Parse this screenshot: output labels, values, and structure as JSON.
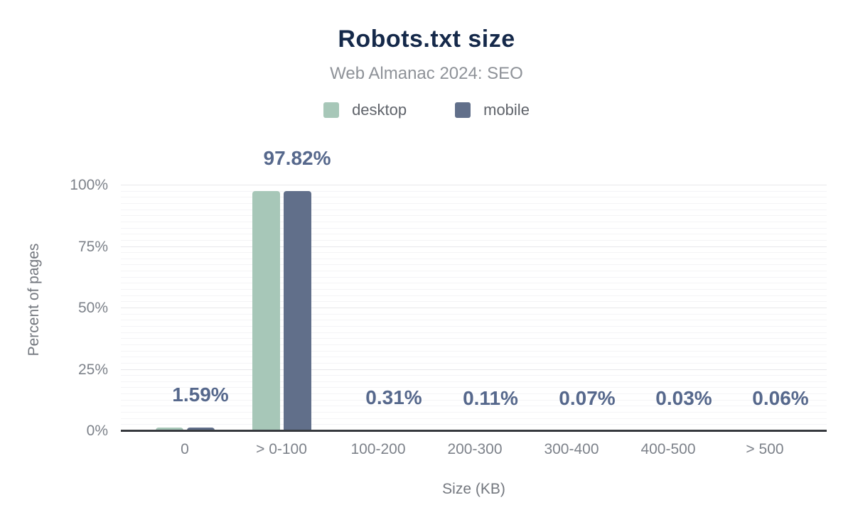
{
  "figure": {
    "title": "Robots.txt size",
    "subtitle": "Web Almanac 2024: SEO"
  },
  "legend": [
    {
      "label": "desktop",
      "color": "#a7c7b8"
    },
    {
      "label": "mobile",
      "color": "#616f8a"
    }
  ],
  "chart_data": {
    "type": "bar",
    "title": "Robots.txt size",
    "subtitle": "Web Almanac 2024: SEO",
    "categories": [
      "0",
      "> 0-100",
      "100-200",
      "200-300",
      "300-400",
      "400-500",
      "> 500"
    ],
    "series": [
      {
        "name": "desktop",
        "color": "#a7c7b8",
        "values": [
          1.59,
          97.82,
          0.31,
          0.11,
          0.07,
          0.03,
          0.06
        ]
      },
      {
        "name": "mobile",
        "color": "#616f8a",
        "values": [
          1.59,
          97.82,
          0.31,
          0.11,
          0.07,
          0.03,
          0.06
        ]
      }
    ],
    "data_labels": [
      "1.59%",
      "97.82%",
      "0.31%",
      "0.11%",
      "0.07%",
      "0.03%",
      "0.06%"
    ],
    "data_label_color": "#56688c",
    "xlabel": "Size (KB)",
    "ylabel": "Percent of pages",
    "ylim": [
      0,
      100
    ],
    "yticks": [
      "0%",
      "25%",
      "50%",
      "75%",
      "100%"
    ],
    "grid": "horizontal, minor every 2.5%, major every 25%",
    "legend_position": "top",
    "axis_line_color": "#36393e",
    "title_color": "#15294a",
    "subtitle_color": "#8e9298"
  }
}
